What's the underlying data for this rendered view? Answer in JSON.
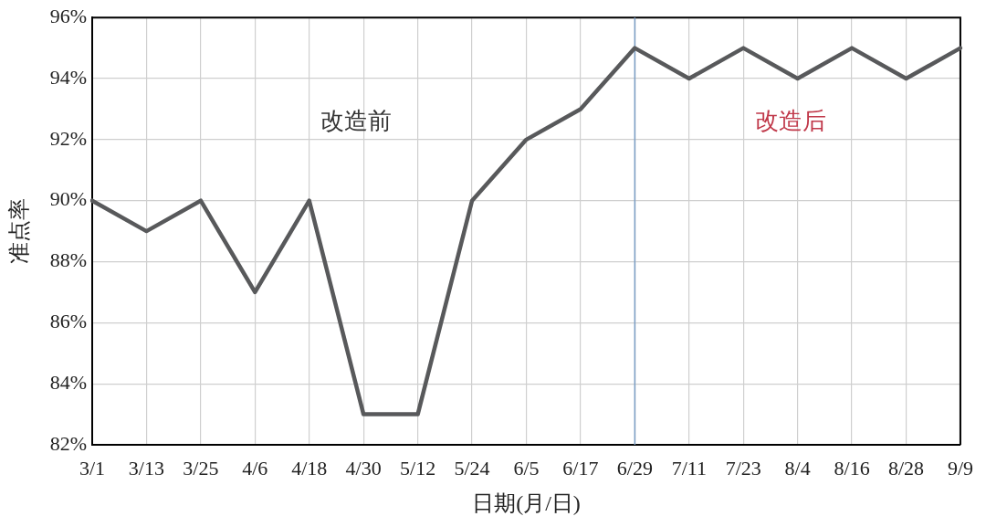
{
  "chart_data": {
    "type": "line",
    "xlabel": "日期(月/日)",
    "ylabel": "准点率",
    "categories": [
      "3/1",
      "3/13",
      "3/25",
      "4/6",
      "4/18",
      "4/30",
      "5/12",
      "5/24",
      "6/5",
      "6/17",
      "6/29",
      "7/11",
      "7/23",
      "8/4",
      "8/16",
      "8/28",
      "9/9"
    ],
    "series": [
      {
        "color": "#58595b",
        "values": [
          90,
          89,
          90,
          87,
          90,
          83,
          83,
          90,
          92,
          93,
          95,
          94,
          95,
          94,
          95,
          94,
          95
        ]
      }
    ],
    "ylim": [
      82,
      96
    ],
    "yticks": [
      {
        "value": 82,
        "label": "82%"
      },
      {
        "value": 84,
        "label": "84%"
      },
      {
        "value": 86,
        "label": "86%"
      },
      {
        "value": 88,
        "label": "88%"
      },
      {
        "value": 90,
        "label": "90%"
      },
      {
        "value": 92,
        "label": "92%"
      },
      {
        "value": 94,
        "label": "94%"
      },
      {
        "value": 96,
        "label": "96%"
      }
    ],
    "grid": true,
    "legend": false,
    "marker": "none",
    "line_style": "solid",
    "ref_lines": [
      {
        "axis": "x",
        "value": "6/29",
        "color": "#7b9ec4"
      }
    ],
    "annotations": [
      "改造前",
      "改造后"
    ]
  }
}
